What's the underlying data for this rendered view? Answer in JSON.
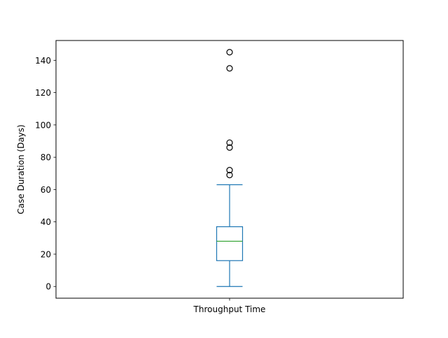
{
  "chart_data": {
    "type": "box",
    "categories": [
      "Throughput Time"
    ],
    "ylabel": "Case Duration (Days)",
    "xlabel": "",
    "ylim": [
      -7.25,
      152.25
    ],
    "yticks": [
      0,
      20,
      40,
      60,
      80,
      100,
      120,
      140
    ],
    "grid": false,
    "boxes": [
      {
        "category": "Throughput Time",
        "whisker_low": 0,
        "q1": 16,
        "median": 28,
        "q3": 37,
        "whisker_high": 63,
        "outliers": [
          69,
          72,
          86,
          89,
          135,
          145
        ]
      }
    ],
    "colors": {
      "box": "#1f77b4",
      "median": "#2ca02c",
      "outlier": "#000000",
      "axes": "#000000"
    }
  }
}
